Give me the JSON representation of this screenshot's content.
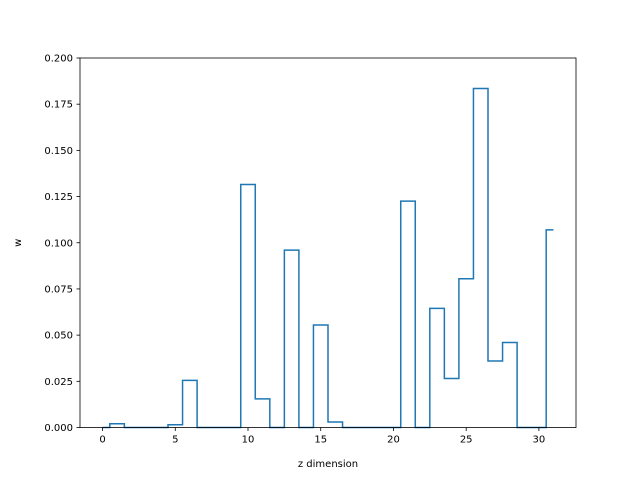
{
  "chart_data": {
    "type": "line",
    "drawstyle": "steps-mid",
    "title": "",
    "xlabel": "z dimension",
    "ylabel": "w",
    "xlim": [
      -1.55,
      32.55
    ],
    "ylim": [
      0,
      0.2
    ],
    "xticks": [
      0,
      5,
      10,
      15,
      20,
      25,
      30
    ],
    "xtick_labels": [
      "0",
      "5",
      "10",
      "15",
      "20",
      "25",
      "30"
    ],
    "yticks": [
      0,
      0.025,
      0.05,
      0.075,
      0.1,
      0.125,
      0.15,
      0.175,
      0.2
    ],
    "ytick_labels": [
      "0.000",
      "0.025",
      "0.050",
      "0.075",
      "0.100",
      "0.125",
      "0.150",
      "0.175",
      "0.200"
    ],
    "grid": false,
    "legend": "none",
    "series": [
      {
        "color": "#1f77b4",
        "x": [
          0,
          1,
          2,
          3,
          4,
          5,
          6,
          7,
          8,
          9,
          10,
          11,
          12,
          13,
          14,
          15,
          16,
          17,
          18,
          19,
          20,
          21,
          22,
          23,
          24,
          25,
          26,
          27,
          28,
          29,
          30,
          31
        ],
        "y": [
          0,
          0.002,
          0,
          0,
          0,
          0.0015,
          0.0255,
          0,
          0,
          0,
          0.1315,
          0.0155,
          0,
          0.096,
          0,
          0.0555,
          0.003,
          0,
          0,
          0,
          0,
          0.1225,
          0,
          0.0645,
          0.0265,
          0.0805,
          0.1835,
          0.036,
          0.046,
          0,
          0,
          0.107
        ]
      }
    ]
  }
}
